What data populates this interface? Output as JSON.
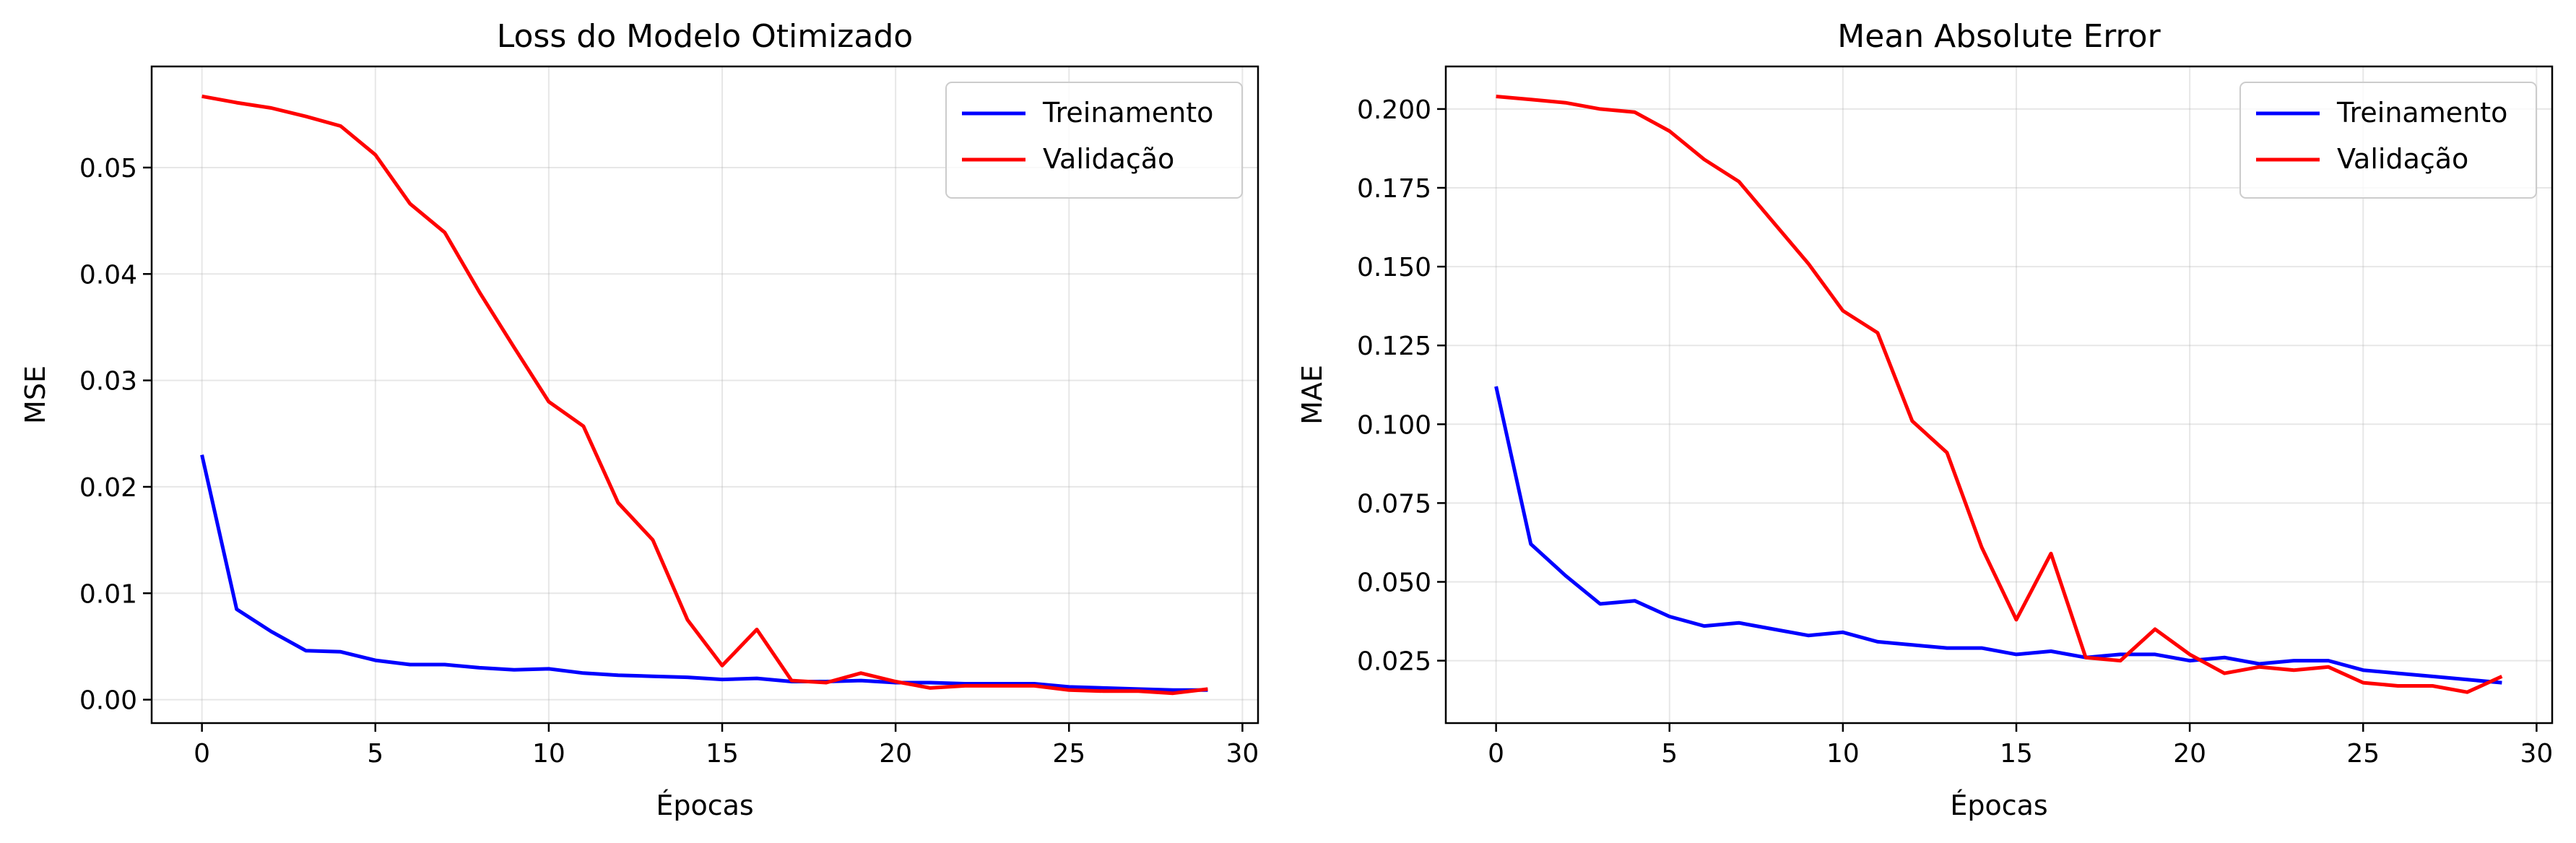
{
  "chart_data": [
    {
      "type": "line",
      "title": "Loss do Modelo Otimizado",
      "xlabel": "Épocas",
      "ylabel": "MSE",
      "xlim": [
        -1.45,
        30.45
      ],
      "ylim": [
        -0.0022,
        0.0595
      ],
      "xticks": [
        0,
        5,
        10,
        15,
        20,
        25,
        30
      ],
      "xtick_labels": [
        "0",
        "5",
        "10",
        "15",
        "20",
        "25",
        "30"
      ],
      "yticks": [
        0,
        0.01,
        0.02,
        0.03,
        0.04,
        0.05
      ],
      "ytick_labels": [
        "0.00",
        "0.01",
        "0.02",
        "0.03",
        "0.04",
        "0.05"
      ],
      "grid": true,
      "legend_position": "top-right",
      "x": [
        0,
        1,
        2,
        3,
        4,
        5,
        6,
        7,
        8,
        9,
        10,
        11,
        12,
        13,
        14,
        15,
        16,
        17,
        18,
        19,
        20,
        21,
        22,
        23,
        24,
        25,
        26,
        27,
        28,
        29
      ],
      "series": [
        {
          "name": "Treinamento",
          "color": "#0000ff",
          "values": [
            0.023,
            0.0085,
            0.0064,
            0.0046,
            0.0045,
            0.0037,
            0.0033,
            0.0033,
            0.003,
            0.0028,
            0.0029,
            0.0025,
            0.0023,
            0.0022,
            0.0021,
            0.0019,
            0.002,
            0.0017,
            0.0017,
            0.0018,
            0.0016,
            0.0016,
            0.0015,
            0.0015,
            0.0015,
            0.0012,
            0.0011,
            0.001,
            0.0009,
            0.0009
          ]
        },
        {
          "name": "Validação",
          "color": "#ff0000",
          "values": [
            0.0567,
            0.0561,
            0.0556,
            0.0548,
            0.0539,
            0.0512,
            0.0466,
            0.0439,
            0.0383,
            0.0331,
            0.028,
            0.0257,
            0.0185,
            0.015,
            0.0075,
            0.0032,
            0.0066,
            0.0018,
            0.0016,
            0.0025,
            0.0017,
            0.0011,
            0.0013,
            0.0013,
            0.0013,
            0.0009,
            0.0008,
            0.0008,
            0.0006,
            0.001
          ]
        }
      ]
    },
    {
      "type": "line",
      "title": "Mean Absolute Error",
      "xlabel": "Épocas",
      "ylabel": "MAE",
      "xlim": [
        -1.45,
        30.45
      ],
      "ylim": [
        0.0052,
        0.2135
      ],
      "xticks": [
        0,
        5,
        10,
        15,
        20,
        25,
        30
      ],
      "xtick_labels": [
        "0",
        "5",
        "10",
        "15",
        "20",
        "25",
        "30"
      ],
      "yticks": [
        0.025,
        0.05,
        0.075,
        0.1,
        0.125,
        0.15,
        0.175,
        0.2
      ],
      "ytick_labels": [
        "0.025",
        "0.050",
        "0.075",
        "0.100",
        "0.125",
        "0.150",
        "0.175",
        "0.200"
      ],
      "grid": true,
      "legend_position": "top-right",
      "x": [
        0,
        1,
        2,
        3,
        4,
        5,
        6,
        7,
        8,
        9,
        10,
        11,
        12,
        13,
        14,
        15,
        16,
        17,
        18,
        19,
        20,
        21,
        22,
        23,
        24,
        25,
        26,
        27,
        28,
        29
      ],
      "series": [
        {
          "name": "Treinamento",
          "color": "#0000ff",
          "values": [
            0.112,
            0.062,
            0.052,
            0.043,
            0.044,
            0.039,
            0.036,
            0.037,
            0.035,
            0.033,
            0.034,
            0.031,
            0.03,
            0.029,
            0.029,
            0.027,
            0.028,
            0.026,
            0.027,
            0.027,
            0.025,
            0.026,
            0.024,
            0.025,
            0.025,
            0.022,
            0.021,
            0.02,
            0.019,
            0.018
          ]
        },
        {
          "name": "Validação",
          "color": "#ff0000",
          "values": [
            0.204,
            0.203,
            0.202,
            0.2,
            0.199,
            0.193,
            0.184,
            0.177,
            0.164,
            0.151,
            0.136,
            0.129,
            0.101,
            0.091,
            0.061,
            0.038,
            0.059,
            0.026,
            0.025,
            0.035,
            0.027,
            0.021,
            0.023,
            0.022,
            0.023,
            0.018,
            0.017,
            0.017,
            0.015,
            0.02
          ]
        }
      ]
    }
  ]
}
